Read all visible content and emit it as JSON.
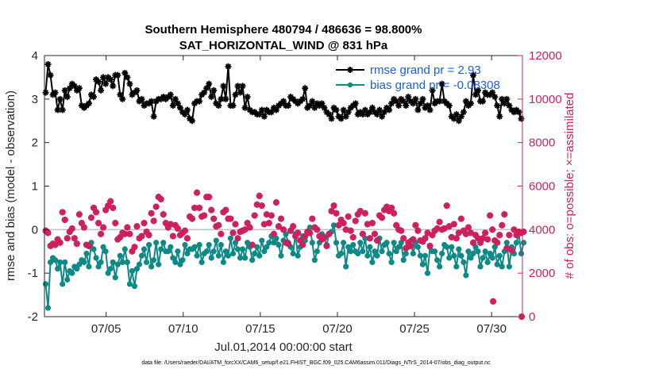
{
  "chart_data": {
    "type": "line",
    "title_line1": "Southern Hemisphere 480794 / 486636 = 98.800%",
    "title_line2": "SAT_HORIZONTAL_WIND @ 831 hPa",
    "xlabel": "Jul.01,2014 00:00:00 start",
    "ylabel": "rmse and bias (model - observation)",
    "ylabel_right": "# of obs: o=possible; ×=assimilated",
    "footer": "data file: /Users/raeder/DAI/ATM_forcXX/CAM6_setup/f.e21.FHIST_BGC.f09_025.CAM6assim.011/Diags_NTrS_2014-07/obs_diag_output.nc",
    "x_range": [
      1,
      32
    ],
    "x_ticks": [
      {
        "value": 5,
        "label": "07/05"
      },
      {
        "value": 10,
        "label": "07/10"
      },
      {
        "value": 15,
        "label": "07/15"
      },
      {
        "value": 20,
        "label": "07/20"
      },
      {
        "value": 25,
        "label": "07/25"
      },
      {
        "value": 30,
        "label": "07/30"
      }
    ],
    "ylim": [
      -2,
      4
    ],
    "y_ticks": [
      "-2",
      "-1",
      "0",
      "1",
      "2",
      "3",
      "4"
    ],
    "ylim_right": [
      0,
      12000
    ],
    "y_ticks_right": [
      "0",
      "2000",
      "4000",
      "6000",
      "8000",
      "10000",
      "12000"
    ],
    "zero_line": 0,
    "legend": [
      {
        "label": "rmse grand pr = 2.93",
        "color": "#000000"
      },
      {
        "label": "bias grand pr = -0.08308",
        "color": "#0e8a86"
      }
    ],
    "series": [
      {
        "name": "rmse",
        "color": "#000000",
        "marker": "star",
        "axis": "left",
        "values": [
          3.15,
          3.8,
          3.55,
          3.1,
          3.15,
          2.75,
          3.0,
          2.75,
          3.2,
          3.05,
          3.25,
          3.35,
          3.3,
          3.2,
          3.25,
          2.85,
          2.8,
          2.85,
          2.9,
          3.1,
          3.05,
          3.45,
          3.4,
          3.2,
          3.5,
          3.35,
          3.5,
          3.45,
          3.3,
          3.55,
          3.55,
          3.1,
          3.0,
          3.6,
          3.5,
          3.35,
          3.1,
          3.15,
          3.2,
          2.95,
          3.0,
          2.85,
          2.9,
          2.9,
          2.95,
          2.6,
          2.95,
          3.0,
          3.0,
          3.05,
          3.0,
          3.05,
          3.1,
          2.85,
          3.0,
          2.9,
          2.8,
          2.7,
          2.65,
          2.75,
          2.55,
          2.5,
          2.9,
          2.95,
          2.95,
          3.1,
          3.15,
          3.25,
          3.35,
          3.05,
          3.2,
          2.9,
          2.85,
          3.0,
          3.3,
          3.0,
          3.75,
          2.85,
          2.85,
          3.1,
          3.3,
          3.15,
          3.3,
          2.8,
          3.05,
          2.75,
          2.7,
          2.7,
          2.65,
          2.65,
          2.75,
          2.6,
          2.75,
          2.7,
          2.7,
          2.8,
          2.75,
          2.85,
          2.9,
          2.95,
          2.85,
          2.85,
          3.05,
          3.0,
          2.95,
          2.9,
          2.95,
          3.0,
          3.25,
          2.8,
          2.85,
          2.95,
          2.8,
          2.9,
          2.85,
          2.9,
          2.8,
          2.7,
          2.65,
          2.55,
          2.8,
          2.75,
          2.6,
          2.55,
          2.75,
          2.6,
          2.7,
          2.8,
          2.85,
          2.9,
          2.65,
          2.7,
          2.65,
          2.75,
          2.65,
          2.7,
          2.8,
          2.7,
          2.65,
          2.75,
          2.6,
          2.7,
          2.8,
          2.75,
          2.9,
          3.0,
          2.95,
          2.85,
          3.0,
          2.95,
          2.85,
          3.05,
          2.95,
          2.9,
          3.0,
          2.75,
          2.9,
          3.0,
          2.8,
          2.85,
          2.75,
          3.2,
          2.9,
          2.95,
          2.95,
          3.35,
          2.95,
          2.9,
          2.85,
          2.6,
          2.55,
          2.65,
          2.5,
          2.6,
          2.7,
          2.95,
          2.85,
          2.9,
          3.55,
          3.1,
          3.2,
          2.95,
          2.95,
          3.15,
          3.1,
          3.1,
          3.15,
          3.05,
          2.85,
          2.6,
          3.0,
          2.9,
          3.0,
          2.85,
          2.75,
          2.7,
          2.75,
          2.7,
          2.55
        ]
      },
      {
        "name": "bias",
        "color": "#0e8a86",
        "marker": "circle",
        "axis": "left",
        "values": [
          -1.25,
          -1.8,
          -0.75,
          -0.65,
          -0.7,
          -0.9,
          -0.75,
          -1.25,
          -0.75,
          -1.15,
          -0.95,
          -1.0,
          -0.85,
          -0.9,
          -0.8,
          -0.7,
          -0.75,
          -0.55,
          -0.85,
          -0.3,
          -0.45,
          -0.65,
          -0.85,
          -0.75,
          -0.4,
          -0.5,
          -1.0,
          -0.9,
          -0.75,
          -1.1,
          -0.8,
          -0.6,
          -0.75,
          -0.45,
          -0.75,
          -1.25,
          -0.95,
          -1.3,
          -0.9,
          -0.8,
          -0.6,
          -0.45,
          -0.75,
          -0.35,
          -0.85,
          -0.7,
          -0.3,
          -0.8,
          -0.45,
          -0.3,
          -0.5,
          -0.5,
          -0.4,
          -0.65,
          -0.75,
          -0.5,
          -0.8,
          -0.7,
          -0.35,
          -0.55,
          -0.45,
          -0.45,
          -0.4,
          -0.6,
          -0.35,
          -0.75,
          -0.55,
          -0.5,
          -0.35,
          -0.65,
          -0.5,
          -0.25,
          -0.6,
          -0.35,
          -0.75,
          -0.5,
          -0.6,
          -0.2,
          -0.55,
          -0.3,
          -0.45,
          -0.65,
          -0.45,
          -0.65,
          -0.3,
          -0.4,
          -0.7,
          -0.55,
          -0.4,
          -0.6,
          -0.25,
          -0.5,
          -0.4,
          -0.3,
          -0.15,
          -0.3,
          -0.2,
          -0.35,
          -0.6,
          -0.25,
          -0.1,
          -0.3,
          -0.4,
          -0.55,
          -0.1,
          -0.6,
          -0.4,
          -0.15,
          -0.25,
          -0.05,
          0.05,
          -0.3,
          -0.7,
          -0.5,
          -0.3,
          -0.1,
          -0.2,
          -0.35,
          -0.1,
          -0.05,
          0.1,
          -0.3,
          -0.6,
          -0.55,
          -0.3,
          -0.85,
          -0.4,
          -0.5,
          -0.35,
          -0.5,
          -0.55,
          -0.3,
          -0.5,
          -0.2,
          -0.6,
          -0.4,
          -0.75,
          -0.5,
          -0.6,
          -0.2,
          -0.5,
          -0.35,
          -0.3,
          -0.55,
          -0.75,
          -0.3,
          -0.5,
          -0.4,
          -0.3,
          -0.7,
          -0.55,
          -0.4,
          -0.25,
          -0.55,
          -0.3,
          -0.4,
          -0.6,
          -0.8,
          -0.6,
          -1.0,
          -0.4,
          -0.5,
          -0.5,
          -0.7,
          -0.85,
          -0.55,
          -0.35,
          -0.4,
          -0.65,
          -0.4,
          -0.6,
          -0.85,
          -0.45,
          -0.6,
          -0.75,
          -1.05,
          -0.5,
          -0.65,
          -0.55,
          -0.4,
          -0.5,
          -0.85,
          -0.65,
          -0.5,
          -0.75,
          -0.55,
          -0.65,
          -0.4,
          -0.8,
          -0.6,
          -0.85,
          -0.5,
          -0.3,
          -0.85,
          -0.4,
          -0.55,
          -0.3,
          -0.1,
          -0.55,
          -0.3
        ]
      },
      {
        "name": "obs possible / assimilated",
        "color": "#cc1f5c",
        "marker": "star",
        "axis": "right",
        "values": [
          3950,
          3850,
          3250,
          3350,
          3300,
          3550,
          3400,
          4800,
          4450,
          3600,
          3900,
          4050,
          3600,
          3350,
          4700,
          4300,
          4100,
          3300,
          3250,
          4550,
          5000,
          4800,
          4300,
          3800,
          4100,
          4900,
          5100,
          5300,
          5000,
          4300,
          3550,
          3650,
          3850,
          3800,
          4100,
          3800,
          3000,
          3200,
          4150,
          3600,
          3700,
          4300,
          3900,
          3750,
          4750,
          4400,
          5050,
          5500,
          5400,
          4700,
          4300,
          4100,
          4250,
          3700,
          4200,
          4050,
          3750,
          3850,
          3950,
          3600,
          4600,
          4500,
          5000,
          5700,
          5000,
          4600,
          4650,
          5500,
          5500,
          4900,
          4500,
          4150,
          4200,
          3800,
          4800,
          4900,
          4500,
          4500,
          3850,
          4250,
          3600,
          3900,
          3950,
          4000,
          4300,
          4100,
          3300,
          4650,
          5150,
          5550,
          5100,
          4250,
          4700,
          4300,
          4650,
          3800,
          5250,
          4150,
          4500,
          4000,
          3400,
          3350,
          3950,
          4150,
          3700,
          3850,
          3500,
          3300,
          3700,
          3900,
          3850,
          4500,
          4100,
          4000,
          3700,
          3550,
          3650,
          3250,
          3800,
          4850,
          5100,
          4750,
          4200,
          4450,
          4300,
          4000,
          4600,
          3950,
          3650,
          4400,
          4700,
          4850,
          3800,
          4750,
          4250,
          3600,
          4300,
          3800,
          3500,
          4650,
          4550,
          4900,
          5050,
          4850,
          5000,
          4750,
          4200,
          4000,
          3950,
          3600,
          3150,
          3400,
          3250,
          3550,
          4200,
          3950,
          3500,
          3450,
          3600,
          3850,
          3250,
          3750,
          3950,
          4050,
          4350,
          4000,
          4050,
          5100,
          4150,
          3650,
          4250,
          3600,
          3850,
          4500,
          3950,
          3800,
          4100,
          3850,
          3400,
          3750,
          3600,
          3400,
          3600,
          3850,
          3550,
          4650,
          4000,
          3500,
          3400,
          3750,
          4200,
          4700,
          3150,
          3750,
          3050,
          4000,
          3750,
          3900,
          3850,
          3900
        ]
      }
    ],
    "extra_points_right": [
      {
        "x": 30.1,
        "value": 700
      },
      {
        "x": 31.95,
        "value": 0
      }
    ]
  }
}
